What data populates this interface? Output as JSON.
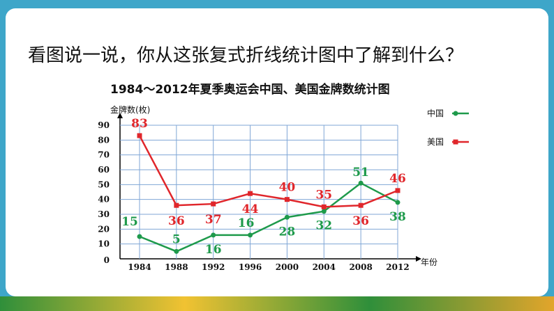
{
  "header": {
    "question": "看图说一说，你从这张复式折线统计图中了解到什么？"
  },
  "chart_data": {
    "type": "line",
    "title": "1984～2012年夏季奥运会中国、美国金牌数统计图",
    "y_label": "金牌数(枚)",
    "x_label": "年份",
    "categories": [
      "1984",
      "1988",
      "1992",
      "1996",
      "2000",
      "2004",
      "2008",
      "2012"
    ],
    "series": [
      {
        "name": "中国",
        "color": "#1e9a4b",
        "marker": "circle",
        "values": [
          15,
          5,
          16,
          16,
          28,
          32,
          51,
          38
        ]
      },
      {
        "name": "美国",
        "color": "#e0262b",
        "marker": "square",
        "values": [
          83,
          36,
          37,
          44,
          40,
          35,
          36,
          46
        ]
      }
    ],
    "ylim": [
      0,
      90
    ],
    "yticks": [
      0,
      10,
      20,
      30,
      40,
      50,
      60,
      70,
      80,
      90
    ],
    "grid": true,
    "legend": "right"
  }
}
